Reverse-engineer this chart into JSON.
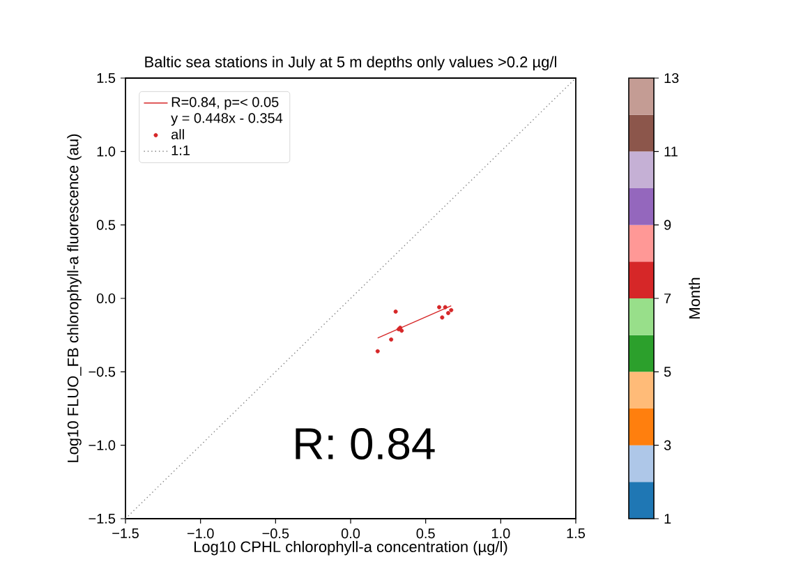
{
  "chart_data": {
    "type": "scatter",
    "title": "Baltic sea stations in July at 5 m depths only values >0.2 µg/l",
    "xlabel": "Log10 CPHL chlorophyll-a concentration (µg/l)",
    "ylabel": "Log10 FLUO_FB chlorophyll-a fluorescence (au)",
    "clabel": "Month",
    "clim": [
      1,
      13
    ],
    "cticks": [
      1,
      3,
      5,
      7,
      9,
      11,
      13
    ],
    "xlim": [
      -1.5,
      1.5
    ],
    "ylim": [
      -1.5,
      1.5
    ],
    "xticks": [
      {
        "value": -1.5,
        "label": "−1.5"
      },
      {
        "value": -1.0,
        "label": "−1.0"
      },
      {
        "value": -0.5,
        "label": "−0.5"
      },
      {
        "value": 0.0,
        "label": "0.0"
      },
      {
        "value": 0.5,
        "label": "0.5"
      },
      {
        "value": 1.0,
        "label": "1.0"
      },
      {
        "value": 1.5,
        "label": "1.5"
      }
    ],
    "yticks": [
      {
        "value": -1.5,
        "label": "−1.5"
      },
      {
        "value": -1.0,
        "label": "−1.0"
      },
      {
        "value": -0.5,
        "label": "−0.5"
      },
      {
        "value": 0.0,
        "label": "0.0"
      },
      {
        "value": 0.5,
        "label": "0.5"
      },
      {
        "value": 1.0,
        "label": "1.0"
      },
      {
        "value": 1.5,
        "label": "1.5"
      }
    ],
    "legend": "top left",
    "grid": false,
    "annotations": [
      "y = 0.448x - 0.354",
      "R: 0.84"
    ],
    "series": [
      {
        "name": "R=0.84, p=< 0.05",
        "type": "line",
        "color": "#d62728",
        "marker": "none",
        "line_style": "solid",
        "x": [
          0.18,
          0.67
        ],
        "values": [
          -0.27,
          -0.05
        ]
      },
      {
        "name": "all",
        "marker": "circle",
        "x": [
          0.18,
          0.27,
          0.3,
          0.32,
          0.33,
          0.34,
          0.59,
          0.63,
          0.65,
          0.67,
          0.61
        ],
        "values": [
          -0.36,
          -0.28,
          -0.09,
          -0.21,
          -0.2,
          -0.22,
          -0.06,
          -0.06,
          -0.1,
          -0.08,
          -0.13
        ],
        "cvalues": [
          7,
          7,
          7,
          7,
          7,
          7,
          7,
          7,
          7,
          7,
          7
        ]
      },
      {
        "name": "1:1",
        "type": "line",
        "color": "#808080",
        "marker": "none",
        "line_style": "dotted",
        "x": [
          -1.5,
          1.5
        ],
        "values": [
          -1.5,
          1.5
        ]
      }
    ]
  }
}
